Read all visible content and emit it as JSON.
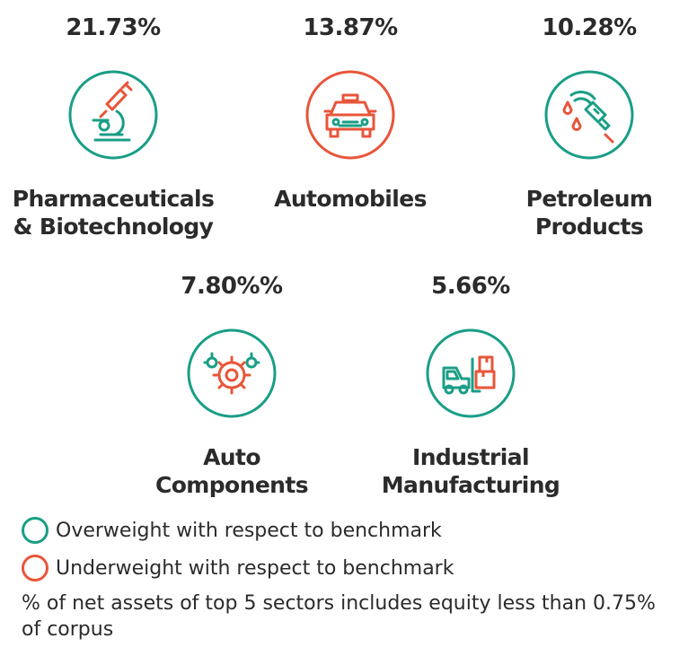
{
  "colors": {
    "overweight": "#1a9e86",
    "underweight": "#e8553a",
    "text": "#2b2b2b"
  },
  "sectors": [
    {
      "percent": "21.73%",
      "name_line1": "Pharmaceuticals",
      "name_line2": "& Biotechnology",
      "icon": "microscope-icon",
      "weight": "overweight"
    },
    {
      "percent": "13.87%",
      "name_line1": "Automobiles",
      "name_line2": "",
      "icon": "car-icon",
      "weight": "underweight"
    },
    {
      "percent": "10.28%",
      "name_line1": "Petroleum",
      "name_line2": "Products",
      "icon": "fuel-nozzle-icon",
      "weight": "overweight"
    },
    {
      "percent": "7.80%%",
      "name_line1": "Auto",
      "name_line2": "Components",
      "icon": "gears-icon",
      "weight": "overweight"
    },
    {
      "percent": "5.66%",
      "name_line1": "Industrial",
      "name_line2": "Manufacturing",
      "icon": "forklift-icon",
      "weight": "overweight"
    }
  ],
  "legend": {
    "overweight": "Overweight with respect to benchmark",
    "underweight": "Underweight with respect to benchmark"
  },
  "note": "% of net assets of top 5 sectors includes equity less than 0.75% of corpus"
}
